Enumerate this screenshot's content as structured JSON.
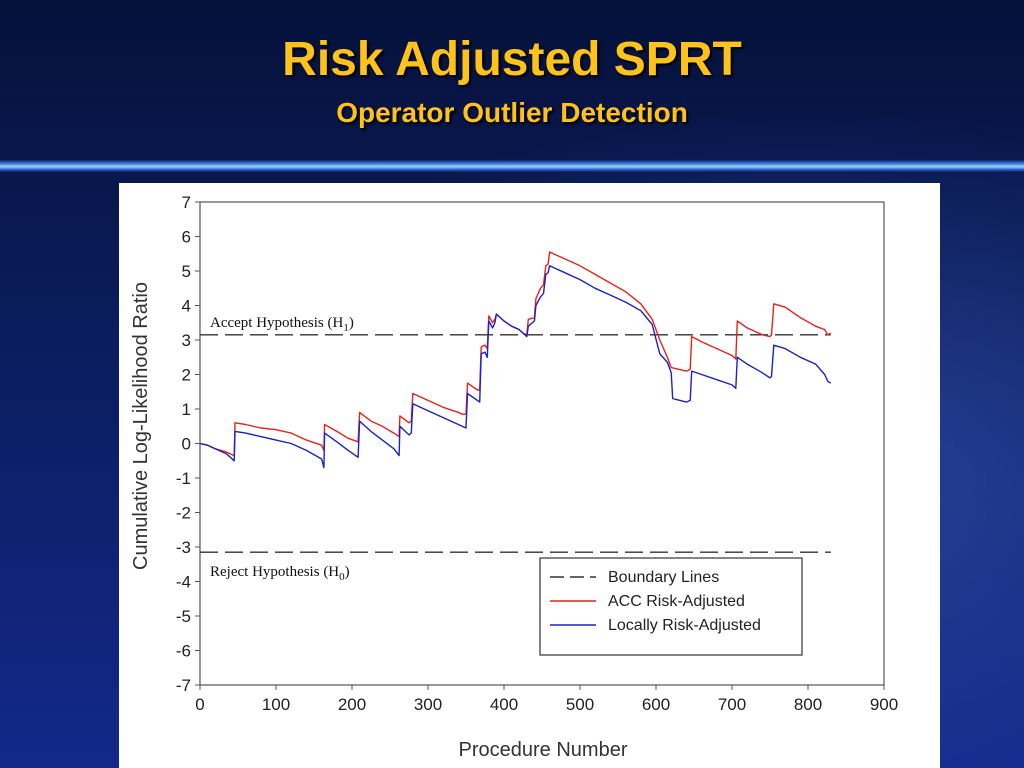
{
  "slide": {
    "title": "Risk Adjusted SPRT",
    "subtitle": "Operator Outlier Detection"
  },
  "chart_data": {
    "type": "line",
    "xlabel": "Procedure Number",
    "ylabel": "Cumulative Log-Likelihood Ratio",
    "xlim": [
      0,
      900
    ],
    "ylim": [
      -7,
      7
    ],
    "x_ticks": [
      0,
      100,
      200,
      300,
      400,
      500,
      600,
      700,
      800,
      900
    ],
    "y_ticks": [
      7,
      6,
      5,
      4,
      3,
      2,
      1,
      0,
      -1,
      -2,
      -3,
      -4,
      -5,
      -6,
      -7
    ],
    "grid": false,
    "legend_position": "bottom-right",
    "boundaries": [
      {
        "name": "Accept Hypothesis (H1)",
        "value": 3.15,
        "label_main": "Accept Hypothesis (H",
        "label_sub": "1",
        "label_end": ")"
      },
      {
        "name": "Reject Hypothesis (H0)",
        "value": -3.15,
        "label_main": "Reject Hypothesis (H",
        "label_sub": "0",
        "label_end": ")"
      }
    ],
    "legend": [
      {
        "label": "Boundary Lines",
        "color": "#333333",
        "dash": true
      },
      {
        "label": "ACC Risk-Adjusted",
        "color": "#e8221a",
        "dash": false
      },
      {
        "label": "Locally Risk-Adjusted",
        "color": "#1a22c8",
        "dash": false
      }
    ],
    "series": [
      {
        "name": "ACC Risk-Adjusted",
        "color": "#e8221a",
        "points": [
          [
            0,
            0
          ],
          [
            10,
            -0.05
          ],
          [
            20,
            -0.15
          ],
          [
            35,
            -0.25
          ],
          [
            45,
            -0.35
          ],
          [
            46,
            0.6
          ],
          [
            60,
            0.55
          ],
          [
            80,
            0.45
          ],
          [
            100,
            0.4
          ],
          [
            120,
            0.3
          ],
          [
            140,
            0.1
          ],
          [
            160,
            -0.05
          ],
          [
            163,
            -0.2
          ],
          [
            164,
            0.55
          ],
          [
            180,
            0.35
          ],
          [
            195,
            0.15
          ],
          [
            208,
            0.05
          ],
          [
            210,
            0.9
          ],
          [
            225,
            0.65
          ],
          [
            240,
            0.5
          ],
          [
            255,
            0.3
          ],
          [
            262,
            0.2
          ],
          [
            263,
            0.8
          ],
          [
            275,
            0.6
          ],
          [
            278,
            0.65
          ],
          [
            280,
            1.45
          ],
          [
            300,
            1.25
          ],
          [
            320,
            1.05
          ],
          [
            340,
            0.9
          ],
          [
            345,
            0.85
          ],
          [
            350,
            0.85
          ],
          [
            352,
            1.75
          ],
          [
            365,
            1.55
          ],
          [
            368,
            1.55
          ],
          [
            370,
            2.8
          ],
          [
            375,
            2.85
          ],
          [
            378,
            2.75
          ],
          [
            380,
            3.7
          ],
          [
            385,
            3.5
          ],
          [
            388,
            3.6
          ],
          [
            390,
            3.75
          ],
          [
            400,
            3.55
          ],
          [
            410,
            3.4
          ],
          [
            420,
            3.3
          ],
          [
            425,
            3.2
          ],
          [
            430,
            3.15
          ],
          [
            432,
            3.6
          ],
          [
            440,
            3.65
          ],
          [
            442,
            4.2
          ],
          [
            448,
            4.5
          ],
          [
            452,
            4.6
          ],
          [
            455,
            5.15
          ],
          [
            458,
            5.2
          ],
          [
            460,
            5.55
          ],
          [
            470,
            5.45
          ],
          [
            480,
            5.35
          ],
          [
            500,
            5.15
          ],
          [
            520,
            4.9
          ],
          [
            540,
            4.65
          ],
          [
            560,
            4.4
          ],
          [
            580,
            4.05
          ],
          [
            595,
            3.6
          ],
          [
            605,
            3.0
          ],
          [
            615,
            2.5
          ],
          [
            620,
            2.2
          ],
          [
            640,
            2.1
          ],
          [
            645,
            2.15
          ],
          [
            647,
            3.1
          ],
          [
            660,
            2.95
          ],
          [
            680,
            2.75
          ],
          [
            700,
            2.55
          ],
          [
            705,
            2.45
          ],
          [
            707,
            3.55
          ],
          [
            720,
            3.35
          ],
          [
            740,
            3.15
          ],
          [
            750,
            3.1
          ],
          [
            752,
            3.15
          ],
          [
            755,
            4.05
          ],
          [
            770,
            3.95
          ],
          [
            790,
            3.65
          ],
          [
            810,
            3.4
          ],
          [
            822,
            3.3
          ],
          [
            826,
            3.15
          ],
          [
            830,
            3.2
          ]
        ]
      },
      {
        "name": "Locally Risk-Adjusted",
        "color": "#1a22c8",
        "points": [
          [
            0,
            0
          ],
          [
            10,
            -0.05
          ],
          [
            20,
            -0.15
          ],
          [
            35,
            -0.3
          ],
          [
            45,
            -0.5
          ],
          [
            46,
            0.35
          ],
          [
            60,
            0.3
          ],
          [
            80,
            0.2
          ],
          [
            100,
            0.1
          ],
          [
            120,
            0.0
          ],
          [
            140,
            -0.2
          ],
          [
            160,
            -0.45
          ],
          [
            163,
            -0.7
          ],
          [
            164,
            0.3
          ],
          [
            180,
            0.05
          ],
          [
            195,
            -0.2
          ],
          [
            208,
            -0.4
          ],
          [
            210,
            0.65
          ],
          [
            225,
            0.35
          ],
          [
            240,
            0.1
          ],
          [
            255,
            -0.15
          ],
          [
            262,
            -0.35
          ],
          [
            263,
            0.5
          ],
          [
            275,
            0.25
          ],
          [
            278,
            0.3
          ],
          [
            280,
            1.15
          ],
          [
            300,
            0.95
          ],
          [
            320,
            0.75
          ],
          [
            340,
            0.55
          ],
          [
            345,
            0.5
          ],
          [
            350,
            0.45
          ],
          [
            352,
            1.45
          ],
          [
            365,
            1.25
          ],
          [
            368,
            1.2
          ],
          [
            370,
            2.6
          ],
          [
            375,
            2.65
          ],
          [
            378,
            2.5
          ],
          [
            380,
            3.55
          ],
          [
            385,
            3.35
          ],
          [
            388,
            3.5
          ],
          [
            390,
            3.75
          ],
          [
            400,
            3.55
          ],
          [
            410,
            3.4
          ],
          [
            420,
            3.3
          ],
          [
            425,
            3.2
          ],
          [
            430,
            3.1
          ],
          [
            432,
            3.4
          ],
          [
            440,
            3.55
          ],
          [
            442,
            4.0
          ],
          [
            448,
            4.25
          ],
          [
            452,
            4.35
          ],
          [
            455,
            4.9
          ],
          [
            458,
            4.95
          ],
          [
            460,
            5.15
          ],
          [
            470,
            5.05
          ],
          [
            480,
            4.95
          ],
          [
            500,
            4.75
          ],
          [
            520,
            4.5
          ],
          [
            540,
            4.3
          ],
          [
            560,
            4.1
          ],
          [
            580,
            3.85
          ],
          [
            595,
            3.45
          ],
          [
            605,
            2.6
          ],
          [
            615,
            2.35
          ],
          [
            620,
            2.05
          ],
          [
            622,
            1.3
          ],
          [
            640,
            1.2
          ],
          [
            645,
            1.25
          ],
          [
            647,
            2.1
          ],
          [
            660,
            2.0
          ],
          [
            680,
            1.85
          ],
          [
            700,
            1.7
          ],
          [
            705,
            1.6
          ],
          [
            707,
            2.5
          ],
          [
            720,
            2.3
          ],
          [
            740,
            2.05
          ],
          [
            750,
            1.9
          ],
          [
            752,
            1.95
          ],
          [
            755,
            2.85
          ],
          [
            770,
            2.75
          ],
          [
            790,
            2.5
          ],
          [
            810,
            2.3
          ],
          [
            822,
            2.0
          ],
          [
            826,
            1.8
          ],
          [
            830,
            1.75
          ]
        ]
      }
    ]
  }
}
